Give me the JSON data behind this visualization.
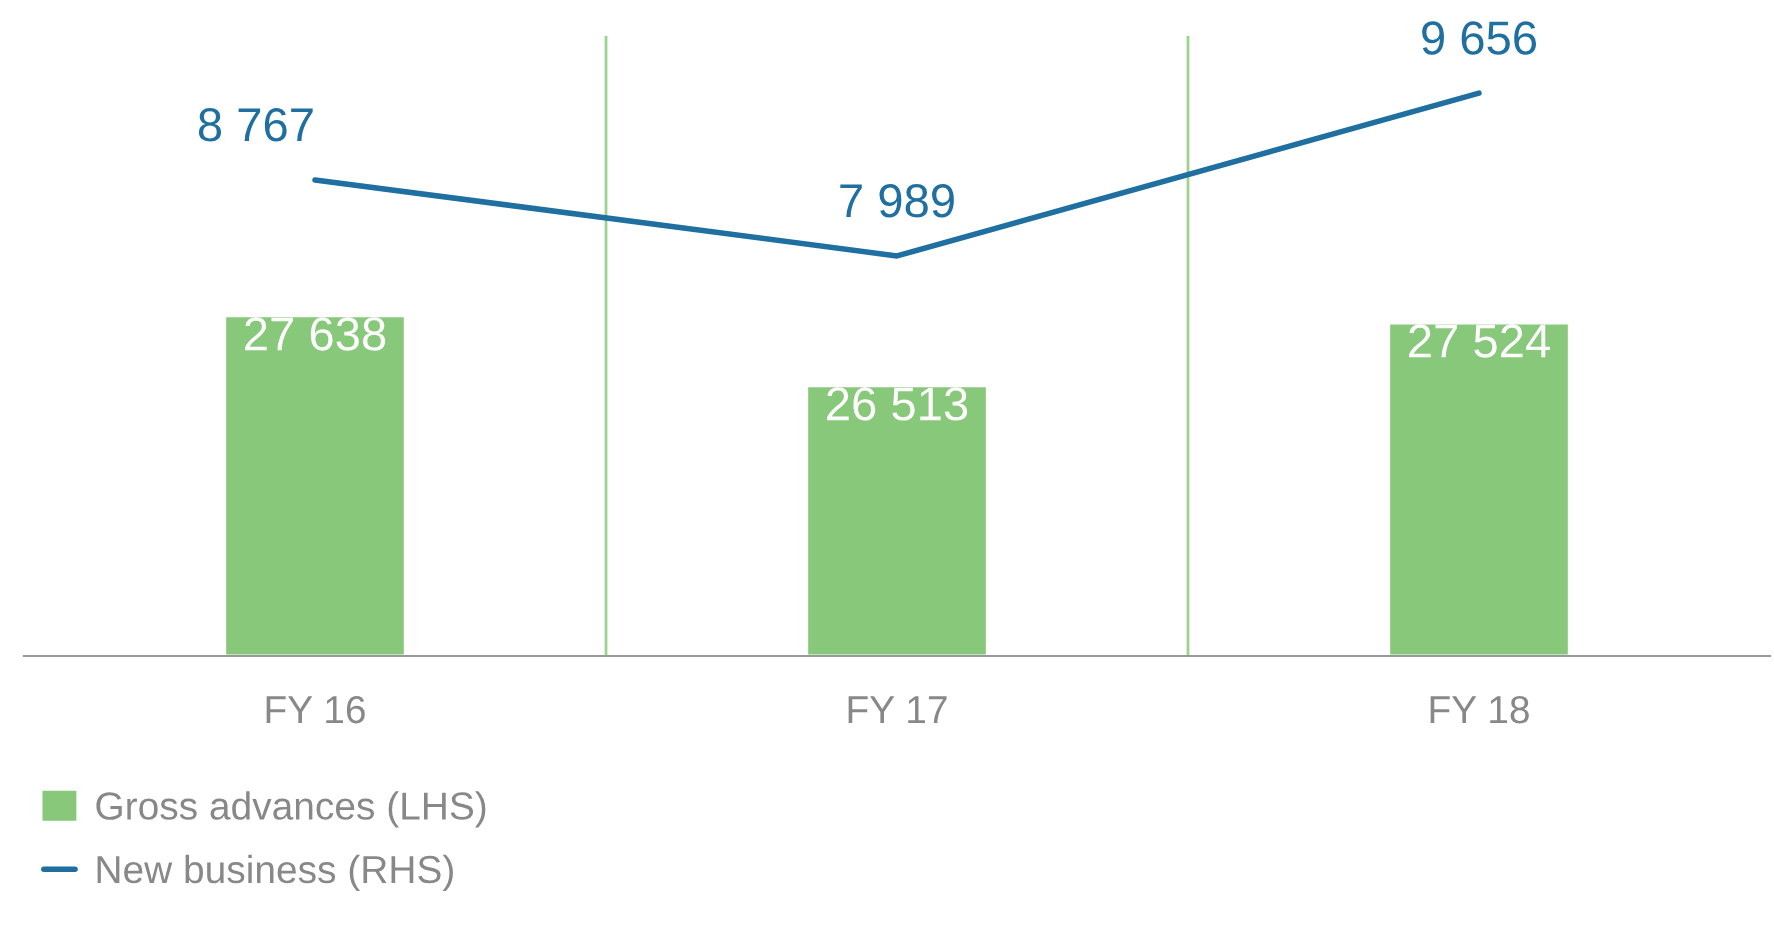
{
  "chart_data": {
    "type": "bar",
    "categories": [
      "FY 16",
      "FY 17",
      "FY 18"
    ],
    "series": [
      {
        "name": "Gross advances (LHS)",
        "color": "#88c87a",
        "values": [
          27638,
          26513,
          27524
        ],
        "value_labels": [
          "27 638",
          "26 513",
          "27 524"
        ]
      },
      {
        "name": "New business (RHS)",
        "type": "line",
        "axis": "y2",
        "color": "#1f6fa0",
        "values": [
          8767,
          7989,
          9656
        ],
        "value_labels": [
          "8 767",
          "7 989",
          "9 656"
        ]
      }
    ],
    "ylim": [
      22170,
      32140
    ],
    "y2lim": [
      3890,
      10242
    ],
    "tick_labels": "x",
    "grid": "x",
    "legend": "bottom left",
    "marker": "none",
    "line_style": "solid"
  }
}
